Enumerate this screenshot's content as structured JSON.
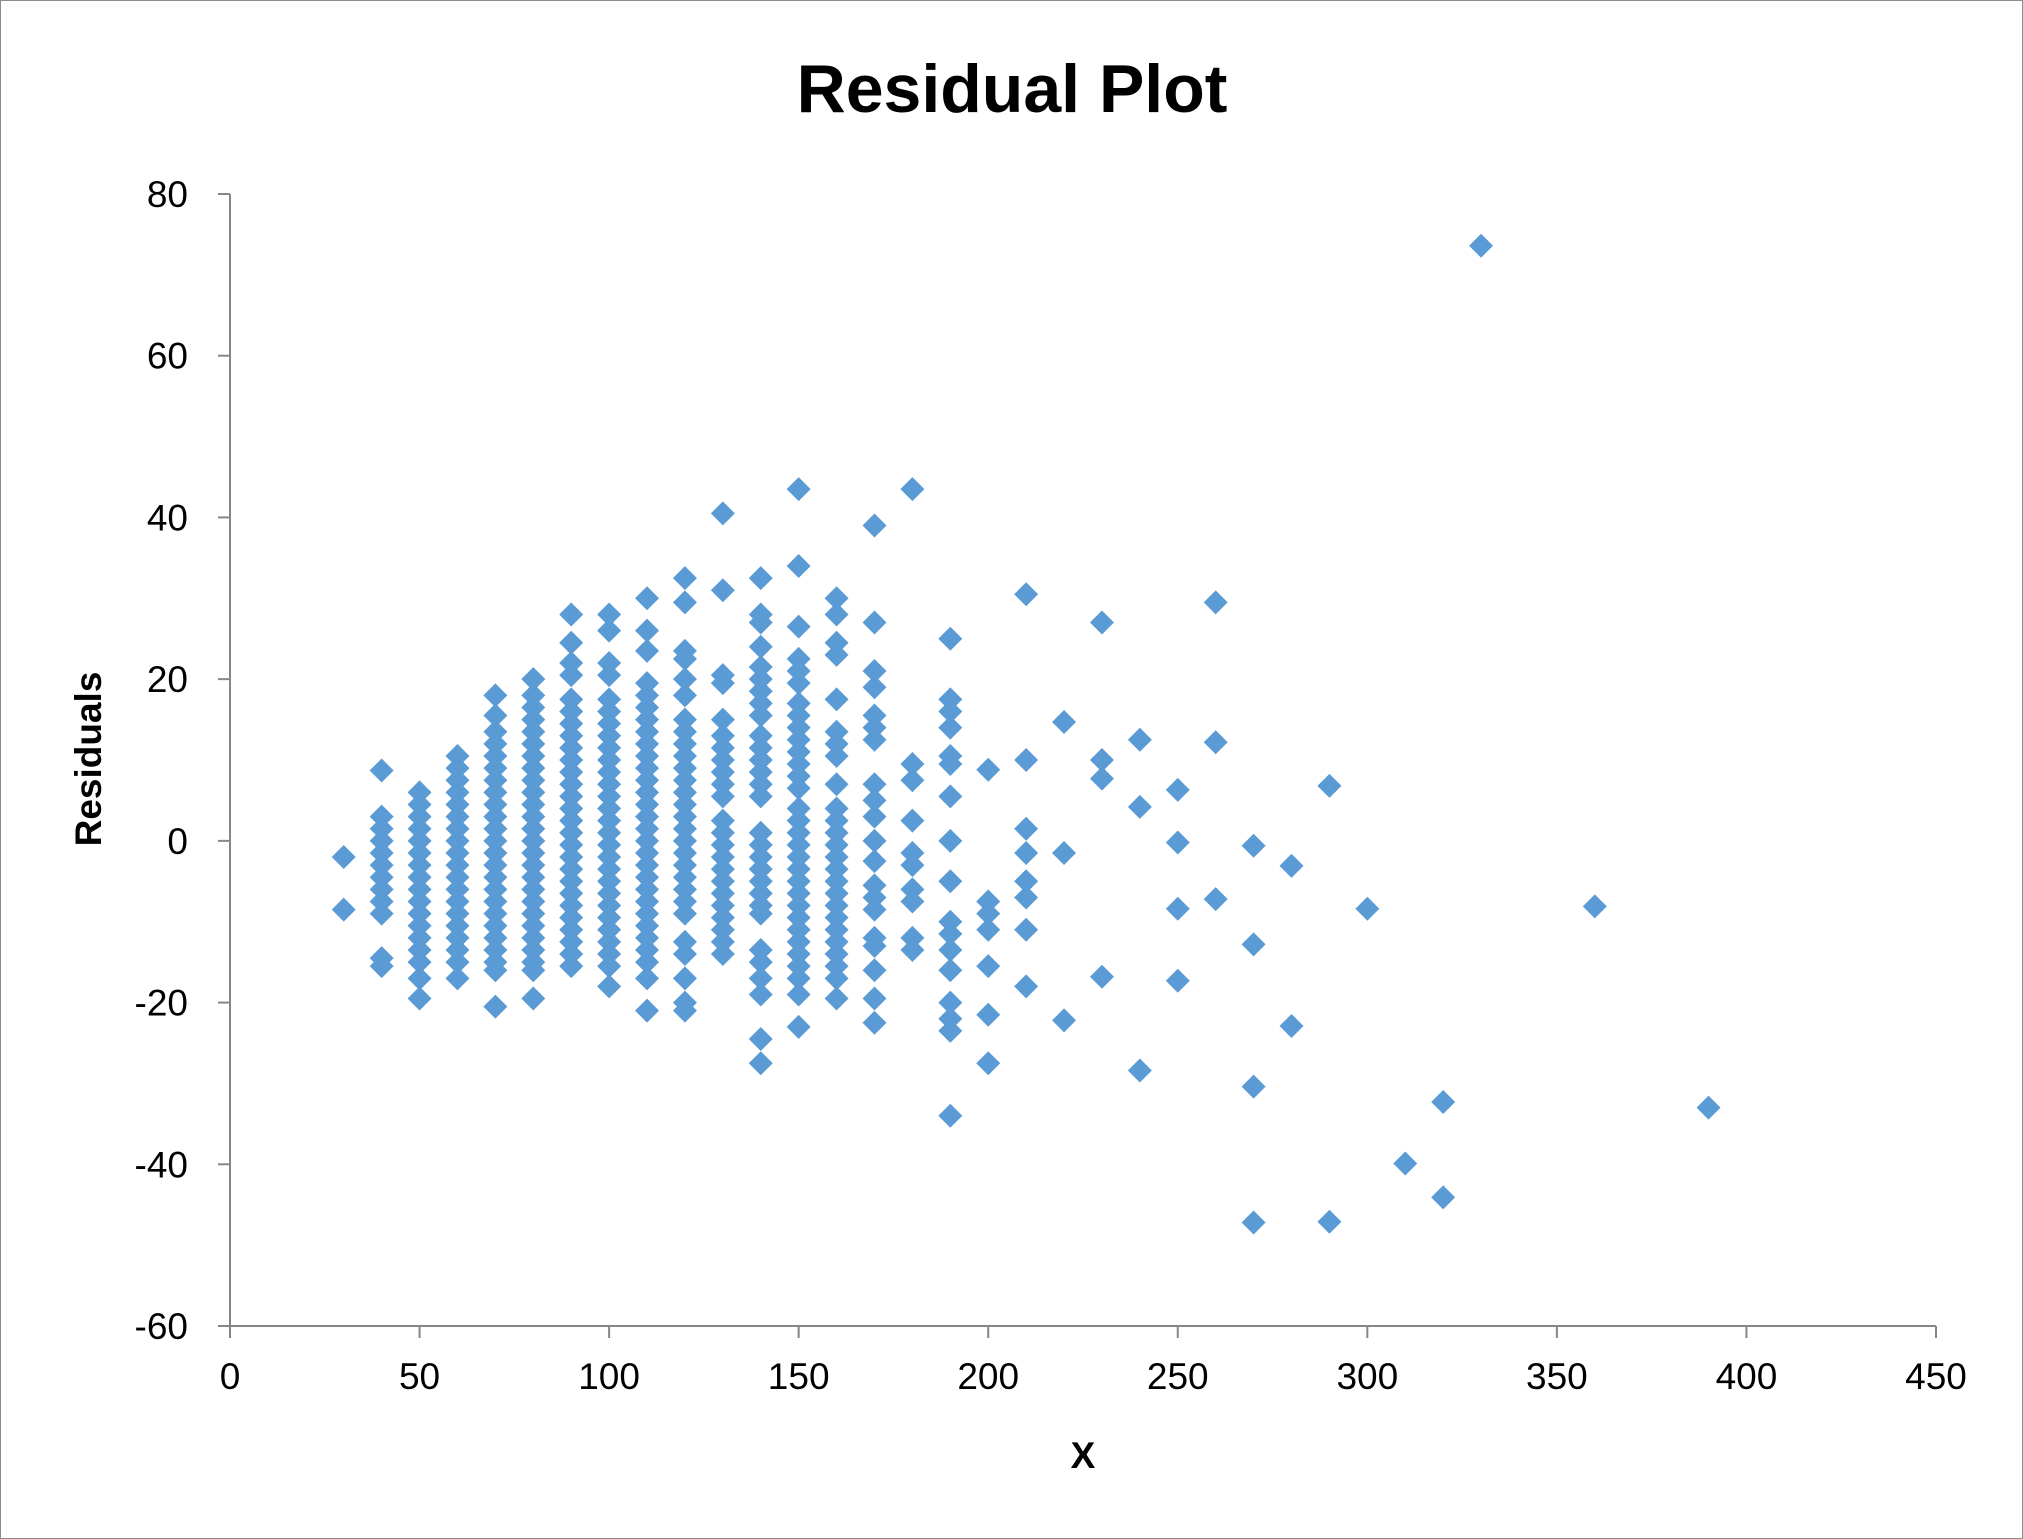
{
  "chart_data": {
    "type": "scatter",
    "title": "Residual Plot",
    "xlabel": "X",
    "ylabel": "Residuals",
    "xlim": [
      0,
      450
    ],
    "ylim": [
      -60,
      80
    ],
    "x_ticks": [
      "0",
      "50",
      "100",
      "150",
      "200",
      "250",
      "300",
      "350",
      "400",
      "450"
    ],
    "y_ticks": [
      "-60",
      "-40",
      "-20",
      "0",
      "20",
      "40",
      "60",
      "80"
    ],
    "grid": false,
    "legend": "none",
    "marker": "diamond",
    "marker_color": "#5b9bd5",
    "points": [
      [
        30,
        -2
      ],
      [
        30,
        -8.5
      ],
      [
        40,
        8.7
      ],
      [
        40,
        3
      ],
      [
        40,
        1.5
      ],
      [
        40,
        0
      ],
      [
        40,
        -1.5
      ],
      [
        40,
        -3
      ],
      [
        40,
        -4.5
      ],
      [
        40,
        -6
      ],
      [
        40,
        -7.5
      ],
      [
        40,
        -9
      ],
      [
        40,
        -14.5
      ],
      [
        40,
        -15.5
      ],
      [
        50,
        6
      ],
      [
        50,
        4.5
      ],
      [
        50,
        3
      ],
      [
        50,
        1.5
      ],
      [
        50,
        0
      ],
      [
        50,
        -1.5
      ],
      [
        50,
        -3
      ],
      [
        50,
        -4.5
      ],
      [
        50,
        -6
      ],
      [
        50,
        -7.5
      ],
      [
        50,
        -9
      ],
      [
        50,
        -10.5
      ],
      [
        50,
        -12
      ],
      [
        50,
        -13.5
      ],
      [
        50,
        -15
      ],
      [
        50,
        -17
      ],
      [
        50,
        -19.5
      ],
      [
        60,
        10.5
      ],
      [
        60,
        9
      ],
      [
        60,
        7.5
      ],
      [
        60,
        6
      ],
      [
        60,
        4.5
      ],
      [
        60,
        3
      ],
      [
        60,
        1.5
      ],
      [
        60,
        0
      ],
      [
        60,
        -1.5
      ],
      [
        60,
        -3
      ],
      [
        60,
        -4.5
      ],
      [
        60,
        -6
      ],
      [
        60,
        -7.5
      ],
      [
        60,
        -9
      ],
      [
        60,
        -10.5
      ],
      [
        60,
        -12
      ],
      [
        60,
        -13.5
      ],
      [
        60,
        -15
      ],
      [
        60,
        -17
      ],
      [
        70,
        18
      ],
      [
        70,
        15.5
      ],
      [
        70,
        13.5
      ],
      [
        70,
        12
      ],
      [
        70,
        10.5
      ],
      [
        70,
        9
      ],
      [
        70,
        7.5
      ],
      [
        70,
        6
      ],
      [
        70,
        4.5
      ],
      [
        70,
        3
      ],
      [
        70,
        1.5
      ],
      [
        70,
        0
      ],
      [
        70,
        -1.5
      ],
      [
        70,
        -3
      ],
      [
        70,
        -4.5
      ],
      [
        70,
        -6
      ],
      [
        70,
        -7.5
      ],
      [
        70,
        -9
      ],
      [
        70,
        -10.5
      ],
      [
        70,
        -12
      ],
      [
        70,
        -13.5
      ],
      [
        70,
        -15
      ],
      [
        70,
        -16
      ],
      [
        70,
        -20.5
      ],
      [
        80,
        20
      ],
      [
        80,
        18
      ],
      [
        80,
        16.5
      ],
      [
        80,
        15
      ],
      [
        80,
        13.5
      ],
      [
        80,
        12
      ],
      [
        80,
        10.5
      ],
      [
        80,
        9
      ],
      [
        80,
        7.5
      ],
      [
        80,
        6
      ],
      [
        80,
        4.5
      ],
      [
        80,
        3
      ],
      [
        80,
        1.5
      ],
      [
        80,
        0
      ],
      [
        80,
        -1.5
      ],
      [
        80,
        -3
      ],
      [
        80,
        -4.5
      ],
      [
        80,
        -6
      ],
      [
        80,
        -7.5
      ],
      [
        80,
        -9
      ],
      [
        80,
        -10.5
      ],
      [
        80,
        -12
      ],
      [
        80,
        -13.5
      ],
      [
        80,
        -15
      ],
      [
        80,
        -16
      ],
      [
        80,
        -19.5
      ],
      [
        90,
        28
      ],
      [
        90,
        24.5
      ],
      [
        90,
        22
      ],
      [
        90,
        20.5
      ],
      [
        90,
        17.5
      ],
      [
        90,
        16
      ],
      [
        90,
        14.5
      ],
      [
        90,
        13
      ],
      [
        90,
        11.5
      ],
      [
        90,
        10
      ],
      [
        90,
        8.5
      ],
      [
        90,
        7
      ],
      [
        90,
        5.5
      ],
      [
        90,
        4
      ],
      [
        90,
        2.5
      ],
      [
        90,
        1
      ],
      [
        90,
        -0.5
      ],
      [
        90,
        -2
      ],
      [
        90,
        -3.5
      ],
      [
        90,
        -5
      ],
      [
        90,
        -6.5
      ],
      [
        90,
        -8
      ],
      [
        90,
        -9.5
      ],
      [
        90,
        -11
      ],
      [
        90,
        -12.5
      ],
      [
        90,
        -14
      ],
      [
        90,
        -15.5
      ],
      [
        100,
        28
      ],
      [
        100,
        26
      ],
      [
        100,
        22
      ],
      [
        100,
        20.5
      ],
      [
        100,
        17.5
      ],
      [
        100,
        16
      ],
      [
        100,
        14.5
      ],
      [
        100,
        13
      ],
      [
        100,
        11.5
      ],
      [
        100,
        10
      ],
      [
        100,
        8.5
      ],
      [
        100,
        7
      ],
      [
        100,
        5.5
      ],
      [
        100,
        4
      ],
      [
        100,
        2.5
      ],
      [
        100,
        1
      ],
      [
        100,
        -0.5
      ],
      [
        100,
        -2
      ],
      [
        100,
        -3.5
      ],
      [
        100,
        -5
      ],
      [
        100,
        -6.5
      ],
      [
        100,
        -8
      ],
      [
        100,
        -9.5
      ],
      [
        100,
        -11
      ],
      [
        100,
        -12.5
      ],
      [
        100,
        -14
      ],
      [
        100,
        -15.5
      ],
      [
        100,
        -18
      ],
      [
        110,
        30
      ],
      [
        110,
        26
      ],
      [
        110,
        23.5
      ],
      [
        110,
        19.5
      ],
      [
        110,
        18
      ],
      [
        110,
        16.5
      ],
      [
        110,
        15
      ],
      [
        110,
        13.5
      ],
      [
        110,
        12
      ],
      [
        110,
        10.5
      ],
      [
        110,
        9
      ],
      [
        110,
        7.5
      ],
      [
        110,
        6
      ],
      [
        110,
        4.5
      ],
      [
        110,
        3
      ],
      [
        110,
        1.5
      ],
      [
        110,
        0
      ],
      [
        110,
        -1.5
      ],
      [
        110,
        -3
      ],
      [
        110,
        -4.5
      ],
      [
        110,
        -6
      ],
      [
        110,
        -7.5
      ],
      [
        110,
        -9
      ],
      [
        110,
        -10.5
      ],
      [
        110,
        -12
      ],
      [
        110,
        -13.5
      ],
      [
        110,
        -15
      ],
      [
        110,
        -17
      ],
      [
        110,
        -21
      ],
      [
        120,
        32.5
      ],
      [
        120,
        29.5
      ],
      [
        120,
        23.5
      ],
      [
        120,
        22.5
      ],
      [
        120,
        20
      ],
      [
        120,
        18
      ],
      [
        120,
        15
      ],
      [
        120,
        13.5
      ],
      [
        120,
        12
      ],
      [
        120,
        10.5
      ],
      [
        120,
        9
      ],
      [
        120,
        7.5
      ],
      [
        120,
        6
      ],
      [
        120,
        4.5
      ],
      [
        120,
        3
      ],
      [
        120,
        1.5
      ],
      [
        120,
        0
      ],
      [
        120,
        -1.5
      ],
      [
        120,
        -3
      ],
      [
        120,
        -4.5
      ],
      [
        120,
        -6
      ],
      [
        120,
        -7.5
      ],
      [
        120,
        -9
      ],
      [
        120,
        -12.5
      ],
      [
        120,
        -14
      ],
      [
        120,
        -17
      ],
      [
        120,
        -20
      ],
      [
        120,
        -21
      ],
      [
        130,
        40.5
      ],
      [
        130,
        31
      ],
      [
        130,
        20.5
      ],
      [
        130,
        19.5
      ],
      [
        130,
        15
      ],
      [
        130,
        13
      ],
      [
        130,
        11.5
      ],
      [
        130,
        10
      ],
      [
        130,
        8.5
      ],
      [
        130,
        7
      ],
      [
        130,
        5.5
      ],
      [
        130,
        2.5
      ],
      [
        130,
        1
      ],
      [
        130,
        -0.5
      ],
      [
        130,
        -2
      ],
      [
        130,
        -3.5
      ],
      [
        130,
        -5
      ],
      [
        130,
        -6.5
      ],
      [
        130,
        -8
      ],
      [
        130,
        -9.5
      ],
      [
        130,
        -11
      ],
      [
        130,
        -12.5
      ],
      [
        130,
        -14
      ],
      [
        140,
        32.5
      ],
      [
        140,
        28
      ],
      [
        140,
        27
      ],
      [
        140,
        24
      ],
      [
        140,
        21.5
      ],
      [
        140,
        20
      ],
      [
        140,
        18.5
      ],
      [
        140,
        17
      ],
      [
        140,
        15.5
      ],
      [
        140,
        13
      ],
      [
        140,
        11.5
      ],
      [
        140,
        10
      ],
      [
        140,
        8.5
      ],
      [
        140,
        7
      ],
      [
        140,
        5.5
      ],
      [
        140,
        1
      ],
      [
        140,
        -0.5
      ],
      [
        140,
        -2
      ],
      [
        140,
        -3.5
      ],
      [
        140,
        -5
      ],
      [
        140,
        -6.5
      ],
      [
        140,
        -8
      ],
      [
        140,
        -9
      ],
      [
        140,
        -13.5
      ],
      [
        140,
        -15
      ],
      [
        140,
        -17
      ],
      [
        140,
        -19
      ],
      [
        140,
        -24.5
      ],
      [
        140,
        -27.5
      ],
      [
        150,
        43.5
      ],
      [
        150,
        34
      ],
      [
        150,
        26.5
      ],
      [
        150,
        22.5
      ],
      [
        150,
        21
      ],
      [
        150,
        19.5
      ],
      [
        150,
        17
      ],
      [
        150,
        15.5
      ],
      [
        150,
        14
      ],
      [
        150,
        12.5
      ],
      [
        150,
        11
      ],
      [
        150,
        9.5
      ],
      [
        150,
        8
      ],
      [
        150,
        6.5
      ],
      [
        150,
        4
      ],
      [
        150,
        2.5
      ],
      [
        150,
        1
      ],
      [
        150,
        -0.5
      ],
      [
        150,
        -2
      ],
      [
        150,
        -3.5
      ],
      [
        150,
        -5
      ],
      [
        150,
        -6.5
      ],
      [
        150,
        -8
      ],
      [
        150,
        -9.5
      ],
      [
        150,
        -11
      ],
      [
        150,
        -12.5
      ],
      [
        150,
        -14
      ],
      [
        150,
        -15.5
      ],
      [
        150,
        -17
      ],
      [
        150,
        -19
      ],
      [
        150,
        -23
      ],
      [
        160,
        30
      ],
      [
        160,
        28
      ],
      [
        160,
        24.5
      ],
      [
        160,
        23
      ],
      [
        160,
        17.5
      ],
      [
        160,
        13.5
      ],
      [
        160,
        12
      ],
      [
        160,
        10.5
      ],
      [
        160,
        7
      ],
      [
        160,
        4
      ],
      [
        160,
        2.5
      ],
      [
        160,
        1
      ],
      [
        160,
        -0.5
      ],
      [
        160,
        -2
      ],
      [
        160,
        -3.5
      ],
      [
        160,
        -5
      ],
      [
        160,
        -6.5
      ],
      [
        160,
        -8
      ],
      [
        160,
        -9.5
      ],
      [
        160,
        -11
      ],
      [
        160,
        -12.5
      ],
      [
        160,
        -14
      ],
      [
        160,
        -15.5
      ],
      [
        160,
        -17
      ],
      [
        160,
        -19.5
      ],
      [
        170,
        39
      ],
      [
        170,
        27
      ],
      [
        170,
        21
      ],
      [
        170,
        19
      ],
      [
        170,
        15.5
      ],
      [
        170,
        14
      ],
      [
        170,
        12.5
      ],
      [
        170,
        7
      ],
      [
        170,
        5
      ],
      [
        170,
        3
      ],
      [
        170,
        0
      ],
      [
        170,
        -2.5
      ],
      [
        170,
        -5.5
      ],
      [
        170,
        -7
      ],
      [
        170,
        -8.5
      ],
      [
        170,
        -12
      ],
      [
        170,
        -13
      ],
      [
        170,
        -16
      ],
      [
        170,
        -19.5
      ],
      [
        170,
        -22.5
      ],
      [
        180,
        43.5
      ],
      [
        180,
        9.5
      ],
      [
        180,
        7.5
      ],
      [
        180,
        2.5
      ],
      [
        180,
        -1.5
      ],
      [
        180,
        -3
      ],
      [
        180,
        -6
      ],
      [
        180,
        -7.5
      ],
      [
        180,
        -12
      ],
      [
        180,
        -13.5
      ],
      [
        190,
        25
      ],
      [
        190,
        17.5
      ],
      [
        190,
        16
      ],
      [
        190,
        14
      ],
      [
        190,
        10.5
      ],
      [
        190,
        9.5
      ],
      [
        190,
        5.5
      ],
      [
        190,
        0
      ],
      [
        190,
        -5
      ],
      [
        190,
        -10
      ],
      [
        190,
        -11.5
      ],
      [
        190,
        -13.5
      ],
      [
        190,
        -16
      ],
      [
        190,
        -20
      ],
      [
        190,
        -22
      ],
      [
        190,
        -23.5
      ],
      [
        190,
        -34
      ],
      [
        200,
        8.8
      ],
      [
        200,
        -7.5
      ],
      [
        200,
        -9
      ],
      [
        200,
        -11
      ],
      [
        200,
        -15.5
      ],
      [
        200,
        -21.5
      ],
      [
        200,
        -27.5
      ],
      [
        210,
        30.5
      ],
      [
        210,
        10
      ],
      [
        210,
        1.5
      ],
      [
        210,
        -1.5
      ],
      [
        210,
        -5
      ],
      [
        210,
        -7
      ],
      [
        210,
        -11
      ],
      [
        210,
        -18
      ],
      [
        220,
        14.7
      ],
      [
        220,
        -1.5
      ],
      [
        220,
        -22.2
      ],
      [
        230,
        27
      ],
      [
        230,
        10
      ],
      [
        230,
        7.7
      ],
      [
        230,
        -16.8
      ],
      [
        240,
        12.5
      ],
      [
        240,
        4.2
      ],
      [
        240,
        -28.4
      ],
      [
        250,
        6.3
      ],
      [
        250,
        -0.2
      ],
      [
        250,
        -8.4
      ],
      [
        250,
        -17.3
      ],
      [
        260,
        29.5
      ],
      [
        260,
        12.2
      ],
      [
        260,
        -7.2
      ],
      [
        270,
        -0.6
      ],
      [
        270,
        -12.8
      ],
      [
        270,
        -30.4
      ],
      [
        270,
        -47.2
      ],
      [
        280,
        -3.1
      ],
      [
        280,
        -22.9
      ],
      [
        290,
        6.8
      ],
      [
        290,
        -47.1
      ],
      [
        300,
        -8.4
      ],
      [
        310,
        -39.9
      ],
      [
        320,
        -32.3
      ],
      [
        320,
        -44.1
      ],
      [
        330,
        73.6
      ],
      [
        360,
        -8.1
      ],
      [
        390,
        -33
      ]
    ]
  }
}
